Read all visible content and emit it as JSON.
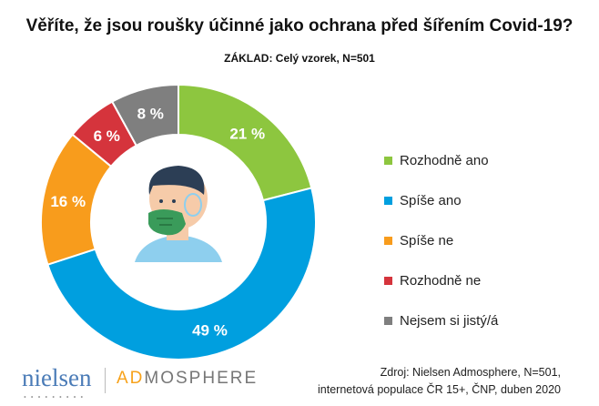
{
  "chart_data": {
    "type": "pie",
    "donut": true,
    "title": "Věříte, že jsou roušky účinné jako ochrana před šířením Covid-19?",
    "subtitle": "ZÁKLAD: Celý vzorek, N=501",
    "categories": [
      "Rozhodně ano",
      "Spíše ano",
      "Spíše ne",
      "Rozhodně ne",
      "Nejsem si jistý/á"
    ],
    "values": [
      21,
      49,
      16,
      6,
      8
    ],
    "labels": [
      "21 %",
      "49 %",
      "16 %",
      "6 %",
      "8 %"
    ],
    "colors": [
      "#8dc63f",
      "#009fdf",
      "#f89c1c",
      "#d5343c",
      "#7f7f7f"
    ],
    "legend_position": "right",
    "center_icon": "person-with-face-mask-icon"
  },
  "footer": {
    "source_line1": "Zdroj: Nielsen Admosphere, N=501,",
    "source_line2": "internetová populace ČR 15+, ČNP, duben 2020",
    "logo_nielsen": "nielsen",
    "logo_admosphere_accent": "AD",
    "logo_admosphere_rest": "MOSPHERE"
  }
}
